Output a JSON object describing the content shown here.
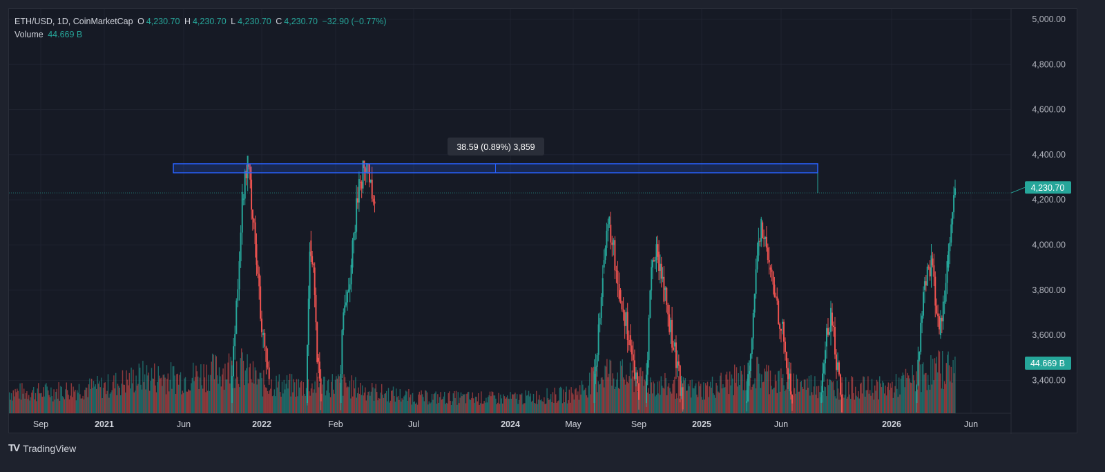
{
  "header": {
    "symbol": "ETH/USD, 1D, CoinMarketCap",
    "open_label": "O",
    "open": "4,230.70",
    "high_label": "H",
    "high": "4,230.70",
    "low_label": "L",
    "low": "4,230.70",
    "close_label": "C",
    "close": "4,230.70",
    "change": "−32.90 (−0.77%)",
    "volume_label": "Volume",
    "volume": "44.669 B"
  },
  "measure_tooltip": "38.59 (0.89%) 3,859",
  "price_badge": "4,230.70",
  "volume_badge": "44.669 B",
  "footer": {
    "brand": "TradingView"
  },
  "colors": {
    "up": "#26a69a",
    "down": "#ef5350",
    "measure": "#2962ff",
    "badge": "#26a69a",
    "background": "#161a25"
  },
  "chart_data": {
    "type": "candlestick",
    "y_ticks": [
      "5,000.00",
      "4,800.00",
      "4,600.00",
      "4,400.00",
      "4,200.00",
      "4,000.00",
      "3,800.00",
      "3,600.00",
      "3,400.00"
    ],
    "y_tick_values": [
      5000,
      4800,
      4600,
      4400,
      4200,
      4000,
      3800,
      3600,
      3400
    ],
    "ylim": [
      3250,
      5000
    ],
    "x_ticks": [
      "Sep",
      "2021",
      "Jun",
      "2022",
      "Feb",
      "Jul",
      "2024",
      "May",
      "Sep",
      "2025",
      "Jun",
      "2026",
      "Jun"
    ],
    "grid": true,
    "last_price": 4230.7,
    "measure_range": [
      4320,
      4360
    ],
    "price_segments": [
      [
        [
          2.6,
          3300
        ],
        [
          2.75,
          4200
        ],
        [
          2.82,
          4360
        ],
        [
          2.9,
          4100
        ],
        [
          3.0,
          3600
        ],
        [
          3.1,
          3400
        ]
      ],
      [
        [
          3.6,
          3300
        ],
        [
          3.65,
          4020
        ],
        [
          3.7,
          3900
        ],
        [
          3.75,
          3500
        ],
        [
          3.8,
          3300
        ]
      ],
      [
        [
          4.05,
          3300
        ],
        [
          4.1,
          3700
        ],
        [
          4.2,
          3900
        ],
        [
          4.3,
          4280
        ],
        [
          4.4,
          4360
        ],
        [
          4.5,
          4200
        ]
      ],
      [
        [
          7.3,
          3300
        ],
        [
          7.45,
          3900
        ],
        [
          7.55,
          4090
        ],
        [
          7.7,
          3800
        ],
        [
          7.85,
          3600
        ],
        [
          8.0,
          3300
        ]
      ],
      [
        [
          8.1,
          3300
        ],
        [
          8.2,
          3900
        ],
        [
          8.3,
          3970
        ],
        [
          8.4,
          3800
        ],
        [
          8.55,
          3550
        ],
        [
          8.7,
          3300
        ]
      ],
      [
        [
          9.55,
          3300
        ],
        [
          9.65,
          3700
        ],
        [
          9.75,
          4100
        ],
        [
          9.85,
          3900
        ],
        [
          10.0,
          3650
        ],
        [
          10.1,
          3300
        ]
      ],
      [
        [
          10.35,
          3300
        ],
        [
          10.4,
          3550
        ],
        [
          10.45,
          3700
        ],
        [
          10.55,
          3300
        ]
      ],
      [
        [
          11.3,
          3300
        ],
        [
          11.4,
          3800
        ],
        [
          11.5,
          3940
        ],
        [
          11.6,
          3600
        ],
        [
          11.7,
          3900
        ],
        [
          11.8,
          4230.7
        ]
      ]
    ],
    "volume_profile_b": [
      [
        0,
        20
      ],
      [
        1,
        25
      ],
      [
        1.5,
        35
      ],
      [
        2,
        33
      ],
      [
        2.7,
        45
      ],
      [
        3,
        28
      ],
      [
        3.5,
        25
      ],
      [
        4,
        28
      ],
      [
        4.5,
        20
      ],
      [
        5,
        15
      ],
      [
        6,
        14
      ],
      [
        7,
        18
      ],
      [
        7.5,
        40
      ],
      [
        8,
        30
      ],
      [
        8.5,
        25
      ],
      [
        9,
        22
      ],
      [
        9.7,
        38
      ],
      [
        10,
        30
      ],
      [
        10.5,
        24
      ],
      [
        11,
        24
      ],
      [
        11.5,
        40
      ],
      [
        11.8,
        44.669
      ]
    ]
  }
}
